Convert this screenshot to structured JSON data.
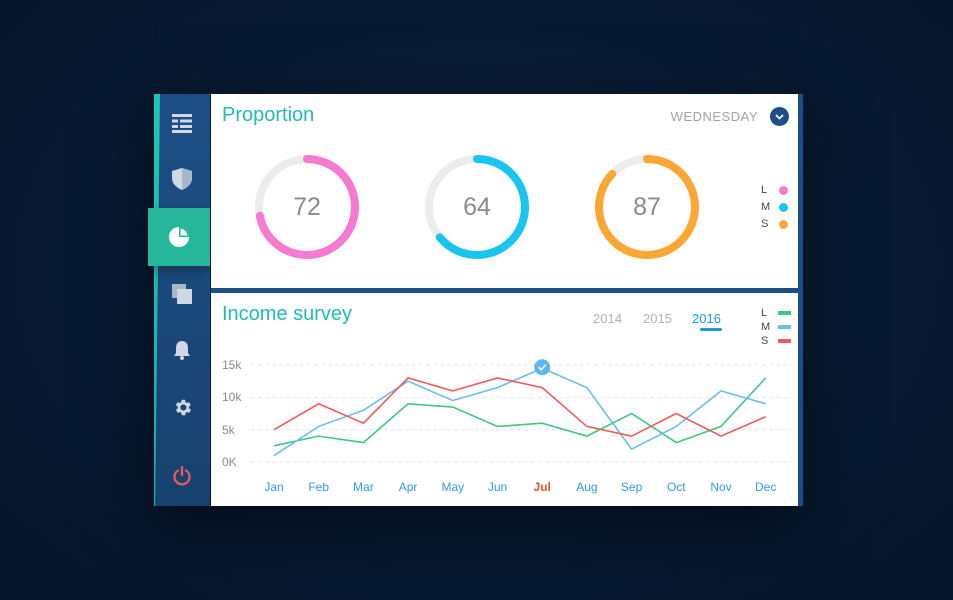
{
  "sidebar": {
    "items": [
      {
        "icon": "menu-icon",
        "active": false
      },
      {
        "icon": "shield-icon",
        "active": false
      },
      {
        "icon": "pie-chart-icon",
        "active": true
      },
      {
        "icon": "layers-icon",
        "active": false
      },
      {
        "icon": "bell-icon",
        "active": false
      },
      {
        "icon": "gear-icon",
        "active": false
      },
      {
        "icon": "power-icon",
        "active": false
      }
    ]
  },
  "proportion": {
    "title": "Proportion",
    "day": "WEDNESDAY",
    "rings": [
      {
        "value": "72",
        "color": "#f57ad0",
        "fraction": 0.72
      },
      {
        "value": "64",
        "color": "#19c4ef",
        "fraction": 0.64
      },
      {
        "value": "87",
        "color": "#fca636",
        "fraction": 0.87
      }
    ],
    "legend": [
      {
        "label": "L",
        "color": "#f57ad0"
      },
      {
        "label": "M",
        "color": "#19c4ef"
      },
      {
        "label": "S",
        "color": "#fca636"
      }
    ]
  },
  "income": {
    "title": "Income survey",
    "years": [
      "2014",
      "2015",
      "2016"
    ],
    "active_year": "2016",
    "legend": [
      {
        "label": "L",
        "color": "#3ec97c"
      },
      {
        "label": "M",
        "color": "#6cbdf0"
      },
      {
        "label": "S",
        "color": "#ef5a5a"
      }
    ]
  },
  "chart_data": {
    "type": "line",
    "categories": [
      "Jan",
      "Feb",
      "Mar",
      "Apr",
      "May",
      "Jun",
      "Jul",
      "Aug",
      "Sep",
      "Oct",
      "Nov",
      "Dec"
    ],
    "y_tick_labels": [
      "15k",
      "10k",
      "5k",
      "0K"
    ],
    "ylim": [
      0,
      15000
    ],
    "highlight_category": "Jul",
    "series": [
      {
        "name": "L",
        "color": "#3ec97c",
        "values": [
          2500,
          4000,
          3000,
          9000,
          8500,
          5500,
          6000,
          4000,
          7500,
          3000,
          5500,
          13000
        ]
      },
      {
        "name": "M",
        "color": "#6cbdf0",
        "values": [
          1000,
          5500,
          8000,
          12500,
          9500,
          11500,
          14500,
          11500,
          2000,
          5500,
          11000,
          9000
        ]
      },
      {
        "name": "S",
        "color": "#ef5a5a",
        "values": [
          5000,
          9000,
          6000,
          13000,
          11000,
          13000,
          11500,
          5500,
          4000,
          7500,
          4000,
          7000
        ]
      }
    ]
  }
}
